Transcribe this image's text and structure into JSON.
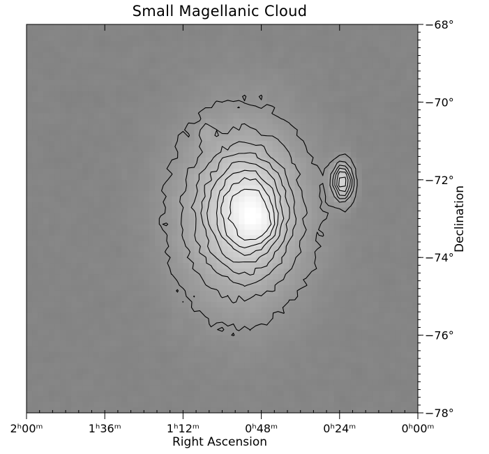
{
  "chart_data": {
    "type": "heatmap",
    "title": "Small Magellanic Cloud",
    "xlabel": "Right Ascension",
    "ylabel": "Declination",
    "colormap": "grayscale",
    "contours": true,
    "xlim_minutes": [
      120,
      0
    ],
    "ylim_deg": [
      -78,
      -68
    ],
    "x_ticks": [
      {
        "minutes": 120,
        "label": "2ʰ00ᵐ"
      },
      {
        "minutes": 96,
        "label": "1ʰ36ᵐ"
      },
      {
        "minutes": 72,
        "label": "1ʰ12ᵐ"
      },
      {
        "minutes": 48,
        "label": "0ʰ48ᵐ"
      },
      {
        "minutes": 24,
        "label": "0ʰ24ᵐ"
      },
      {
        "minutes": 0,
        "label": "0ʰ00ᵐ"
      }
    ],
    "y_ticks": [
      {
        "deg": -68,
        "label": "−68°"
      },
      {
        "deg": -70,
        "label": "−70°"
      },
      {
        "deg": -72,
        "label": "−72°"
      },
      {
        "deg": -74,
        "label": "−74°"
      },
      {
        "deg": -76,
        "label": "−76°"
      },
      {
        "deg": -78,
        "label": "−78°"
      }
    ],
    "components": [
      {
        "ra_min": 54,
        "dec": -72.9,
        "sigma_ra_min": 14,
        "sigma_dec": 1.7,
        "amp": 0.35
      },
      {
        "ra_min": 52,
        "dec": -72.8,
        "sigma_ra_min": 8,
        "sigma_dec": 0.9,
        "amp": 0.25
      },
      {
        "ra_min": 50,
        "dec": -72.9,
        "sigma_ra_min": 3,
        "sigma_dec": 0.4,
        "amp": 0.08
      },
      {
        "ra_min": 46,
        "dec": -73.2,
        "sigma_ra_min": 2.5,
        "sigma_dec": 0.25,
        "amp": 0.07
      },
      {
        "ra_min": 23,
        "dec": -72.05,
        "sigma_ra_min": 2.2,
        "sigma_dec": 0.35,
        "amp": 0.45
      },
      {
        "ra_min": 65,
        "dec": -70.8,
        "sigma_ra_min": 1.2,
        "sigma_dec": 0.17,
        "amp": 0.12
      }
    ],
    "background_level": 0.34,
    "contour_levels": [
      0.31,
      0.42,
      0.5,
      0.57,
      0.63,
      0.69,
      0.75,
      0.81,
      0.87
    ]
  }
}
